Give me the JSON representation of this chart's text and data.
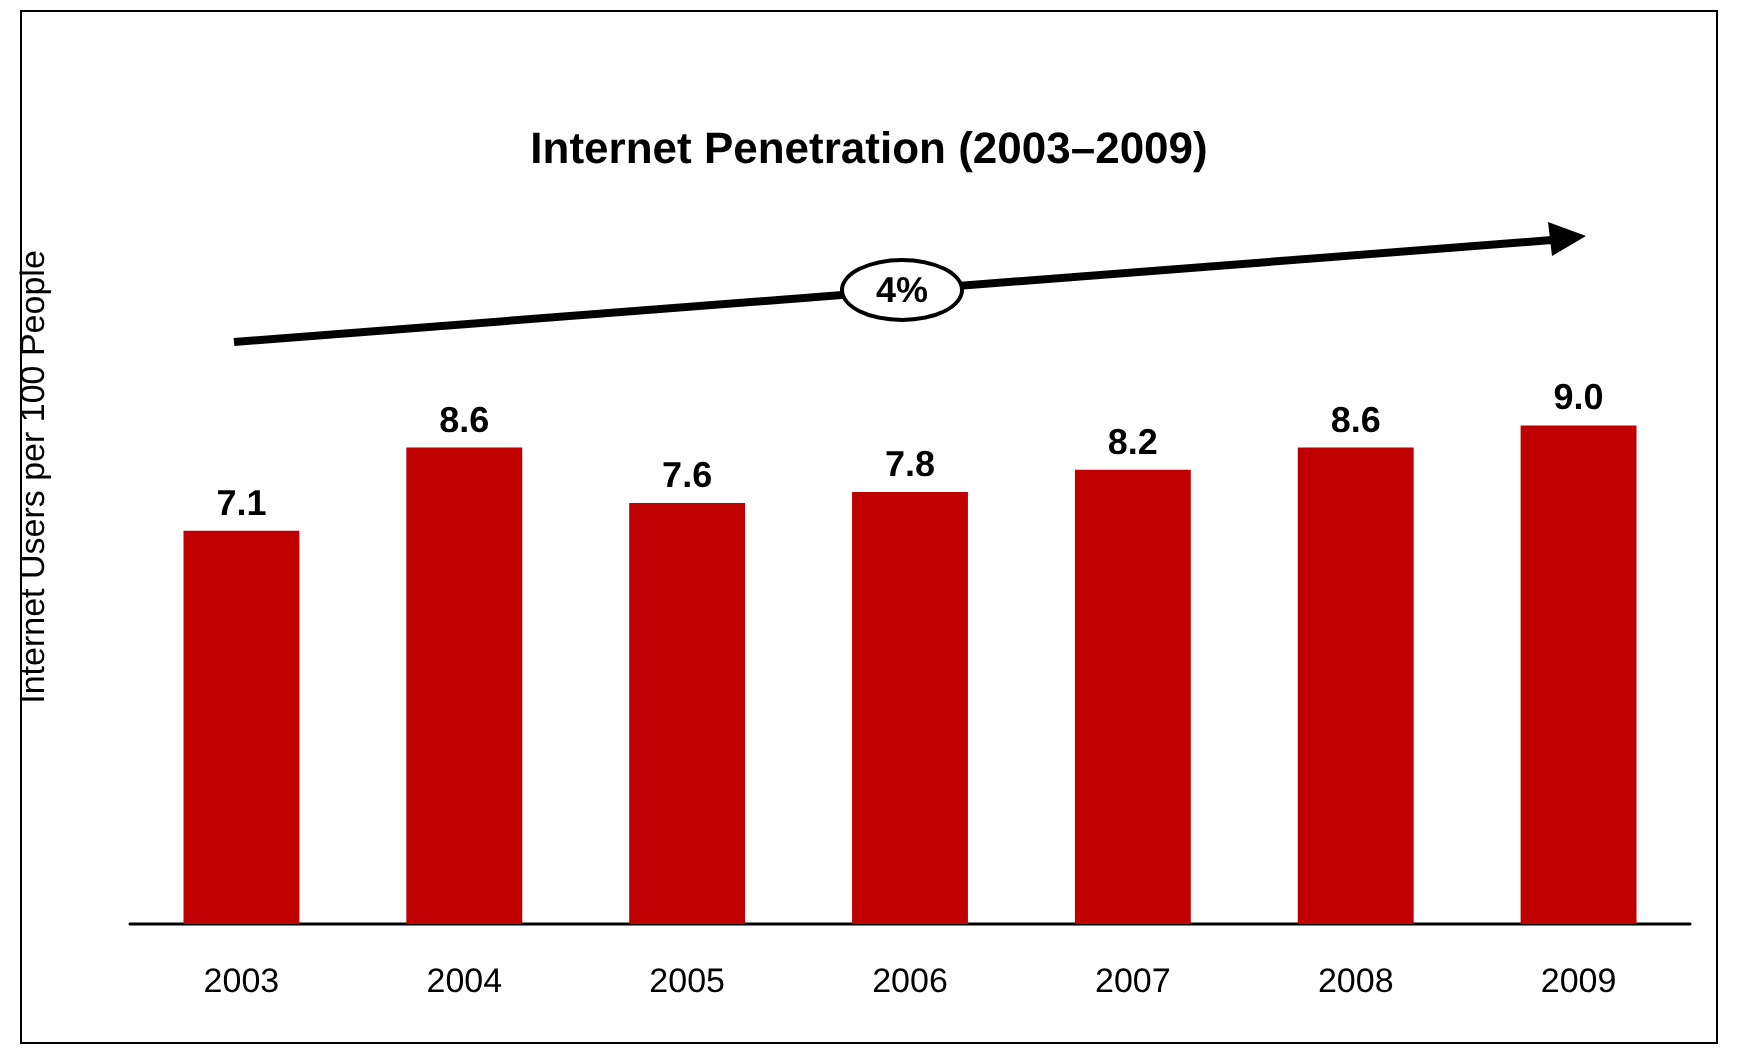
{
  "chart_data": {
    "type": "bar",
    "title": "Internet Penetration (2003–2009)",
    "ylabel": "Internet Users per 100 People",
    "categories": [
      "2003",
      "2004",
      "2005",
      "2006",
      "2007",
      "2008",
      "2009"
    ],
    "values": [
      7.1,
      8.6,
      7.6,
      7.8,
      8.2,
      8.6,
      9.0
    ],
    "value_labels": [
      "7.1",
      "8.6",
      "7.6",
      "7.8",
      "8.2",
      "8.6",
      "9.0"
    ],
    "color": "#c00000",
    "annotations": [
      "4%"
    ]
  }
}
